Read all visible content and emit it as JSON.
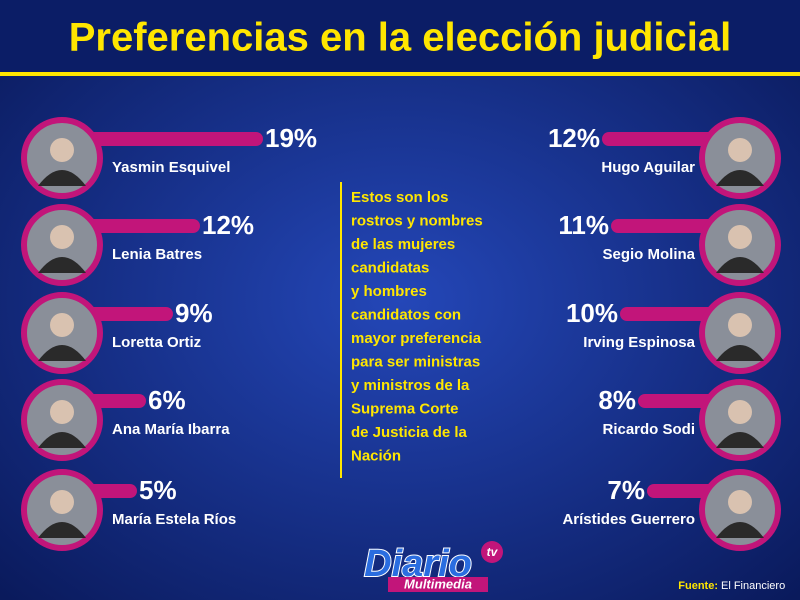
{
  "title": "Preferencias en la elección judicial",
  "chart_data": [
    {
      "type": "bar",
      "side": "left",
      "categories": [
        "Yasmin Esquivel",
        "Lenia Batres",
        "Loretta Ortiz",
        "Ana María Ibarra",
        "María Estela Ríos"
      ],
      "values": [
        19,
        12,
        9,
        6,
        5
      ],
      "value_labels": [
        "19%",
        "12%",
        "9%",
        "6%",
        "5%"
      ],
      "color": "#c2157a"
    },
    {
      "type": "bar",
      "side": "right",
      "categories": [
        "Hugo Aguilar",
        "Segio Molina",
        "Irving Espinosa",
        "Ricardo Sodi",
        "Arístides Guerrero"
      ],
      "values": [
        12,
        11,
        10,
        8,
        7
      ],
      "value_labels": [
        "12%",
        "11%",
        "10%",
        "8%",
        "7%"
      ],
      "color": "#c2157a"
    }
  ],
  "description": [
    "Estos son los",
    "rostros y nombres",
    "de las mujeres",
    "candidatas",
    "y hombres",
    "candidatos con",
    "mayor preferencia",
    "para ser ministras",
    "y ministros de la",
    "Suprema Corte",
    "de Justicia de la",
    "Nación"
  ],
  "logo": {
    "name": "Diario",
    "tv": "tv",
    "subtitle": "Multimedia"
  },
  "source": {
    "label": "Fuente:",
    "name": "El Financiero"
  }
}
